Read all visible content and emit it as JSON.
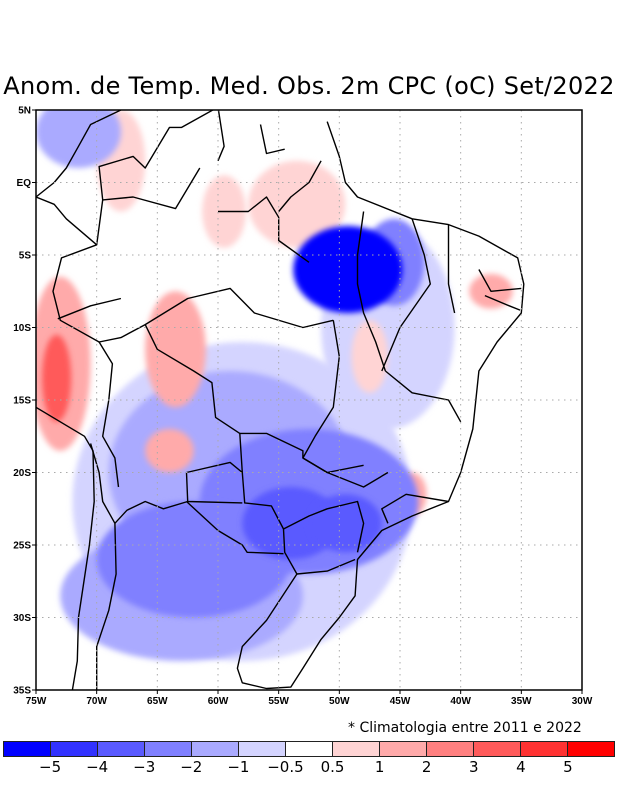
{
  "title": "Anom. de Temp. Med. Obs. 2m CPC (oC) Set/2022",
  "footnote": "* Climatologia entre 2011 e 2022",
  "map": {
    "lon_range": [
      -75,
      -30
    ],
    "lat_range": [
      -35,
      5
    ],
    "y_ticks": [
      {
        "label": "5N",
        "lat": 5
      },
      {
        "label": "EQ",
        "lat": 0
      },
      {
        "label": "5S",
        "lat": -5
      },
      {
        "label": "10S",
        "lat": -10
      },
      {
        "label": "15S",
        "lat": -15
      },
      {
        "label": "20S",
        "lat": -20
      },
      {
        "label": "25S",
        "lat": -25
      },
      {
        "label": "30S",
        "lat": -30
      },
      {
        "label": "35S",
        "lat": -35
      }
    ],
    "x_ticks": [
      {
        "label": "75W",
        "lon": -75
      },
      {
        "label": "70W",
        "lon": -70
      },
      {
        "label": "65W",
        "lon": -65
      },
      {
        "label": "60W",
        "lon": -60
      },
      {
        "label": "55W",
        "lon": -55
      },
      {
        "label": "50W",
        "lon": -50
      },
      {
        "label": "45W",
        "lon": -45
      },
      {
        "label": "40W",
        "lon": -40
      },
      {
        "label": "35W",
        "lon": -35
      },
      {
        "label": "30W",
        "lon": -30
      }
    ],
    "anomaly_features": [
      {
        "level": -5.5,
        "lon": -49.3,
        "lat": -6.0,
        "rx": 4.5,
        "ry": 3.0
      },
      {
        "level": -3.5,
        "lon": -54.0,
        "lat": -23.5,
        "rx": 4.0,
        "ry": 2.5
      },
      {
        "level": -3.5,
        "lon": -49.5,
        "lat": -23.5,
        "rx": 3.0,
        "ry": 2.0
      },
      {
        "level": -2.5,
        "lon": -52.5,
        "lat": -22.0,
        "rx": 9.0,
        "ry": 5.0
      },
      {
        "level": -2.5,
        "lon": -62.0,
        "lat": -26.0,
        "rx": 8.0,
        "ry": 4.0
      },
      {
        "level": -2.5,
        "lon": -45.5,
        "lat": -5.5,
        "rx": 2.5,
        "ry": 3.0
      },
      {
        "level": -1.5,
        "lon": -59.0,
        "lat": -20.0,
        "rx": 10.0,
        "ry": 7.0
      },
      {
        "level": -1.5,
        "lon": -63.0,
        "lat": -28.5,
        "rx": 10.0,
        "ry": 4.5
      },
      {
        "level": -1.5,
        "lon": -71.5,
        "lat": 3.5,
        "rx": 3.5,
        "ry": 2.5
      },
      {
        "level": -0.75,
        "lon": -58.0,
        "lat": -22.0,
        "rx": 14.0,
        "ry": 11.0
      },
      {
        "level": -0.75,
        "lon": -46.0,
        "lat": -10.0,
        "rx": 5.5,
        "ry": 7.0
      },
      {
        "level": 0.75,
        "lon": -53.5,
        "lat": -1.5,
        "rx": 4.0,
        "ry": 3.0
      },
      {
        "level": 0.75,
        "lon": -59.5,
        "lat": -2.0,
        "rx": 1.8,
        "ry": 2.5
      },
      {
        "level": 0.75,
        "lon": -68.0,
        "lat": 1.5,
        "rx": 2.0,
        "ry": 3.5
      },
      {
        "level": 0.75,
        "lon": -47.5,
        "lat": -12.0,
        "rx": 1.5,
        "ry": 2.5
      },
      {
        "level": 1.5,
        "lon": -73.0,
        "lat": -12.5,
        "rx": 2.5,
        "ry": 6.0
      },
      {
        "level": 1.5,
        "lon": -63.5,
        "lat": -11.5,
        "rx": 2.5,
        "ry": 4.0
      },
      {
        "level": 1.5,
        "lon": -64.0,
        "lat": -18.5,
        "rx": 2.0,
        "ry": 1.5
      },
      {
        "level": 1.5,
        "lon": -37.5,
        "lat": -7.5,
        "rx": 1.8,
        "ry": 1.2
      },
      {
        "level": 1.5,
        "lon": -44.0,
        "lat": -21.5,
        "rx": 1.2,
        "ry": 1.5
      },
      {
        "level": 3.5,
        "lon": -73.3,
        "lat": -13.5,
        "rx": 1.2,
        "ry": 3.0
      }
    ]
  },
  "colorbar": {
    "colors": [
      "#0000ff",
      "#3232ff",
      "#5a5aff",
      "#8080ff",
      "#aaaaff",
      "#d4d4ff",
      "#ffffff",
      "#ffd4d4",
      "#ffaaaa",
      "#ff8080",
      "#ff5a5a",
      "#ff3232",
      "#ff0000"
    ],
    "labels": [
      "−5",
      "−4",
      "−3",
      "−2",
      "−1",
      "−0.5",
      "0.5",
      "1",
      "2",
      "3",
      "4",
      "5"
    ]
  }
}
